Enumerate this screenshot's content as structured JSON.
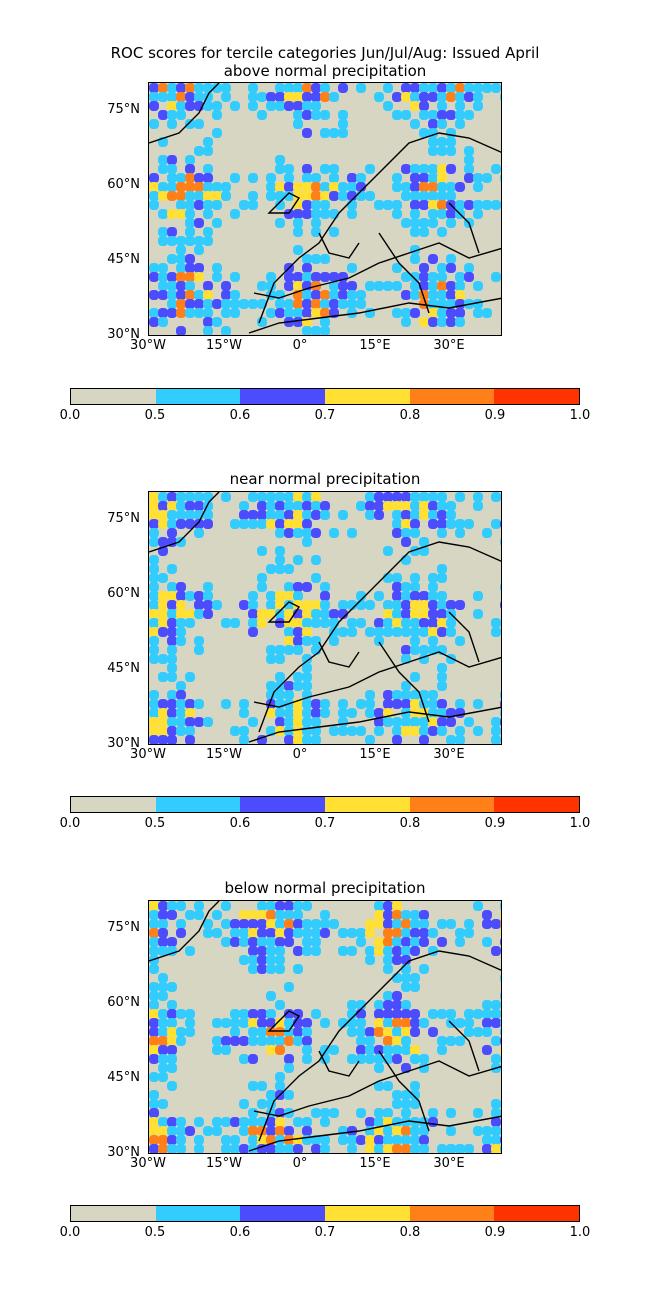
{
  "main_title": "ROC scores for tercile categories Jun/Jul/Aug: Issued April",
  "panels": [
    {
      "subtitle": "above normal precipitation"
    },
    {
      "subtitle": "near normal precipitation"
    },
    {
      "subtitle": "below normal precipitation"
    }
  ],
  "lat_labels": [
    "75°N",
    "60°N",
    "45°N",
    "30°N"
  ],
  "lon_labels": [
    "30°W",
    "15°W",
    "0°",
    "15°E",
    "30°E"
  ],
  "colorbar": {
    "colors": [
      "#d6d6c2",
      "#33ccff",
      "#4c4cff",
      "#ffe033",
      "#ff8019",
      "#ff3300"
    ],
    "ticks": [
      "0.0",
      "0.5",
      "0.6",
      "0.7",
      "0.8",
      "0.9",
      "1.0"
    ]
  },
  "chart_data": {
    "type": "heatmap",
    "title": "ROC scores for tercile categories Jun/Jul/Aug: Issued April",
    "panels": [
      "above normal precipitation",
      "near normal precipitation",
      "below normal precipitation"
    ],
    "x_range_lon": [
      -30,
      40
    ],
    "y_range_lat": [
      30,
      80
    ],
    "color_levels": [
      0.0,
      0.5,
      0.6,
      0.7,
      0.8,
      0.9,
      1.0
    ]
  }
}
